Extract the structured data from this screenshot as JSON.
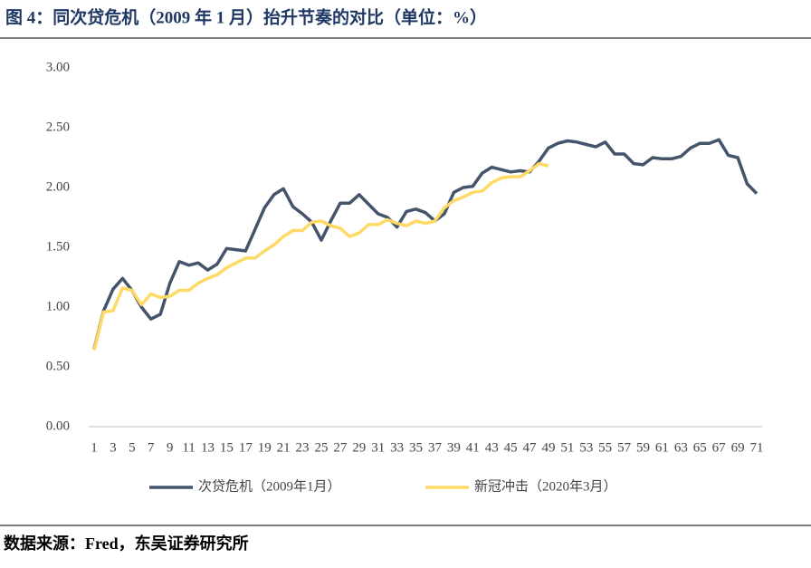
{
  "chart_data": {
    "type": "line",
    "title": "图 4：同次贷危机（2009 年 1 月）抬升节奏的对比（单位：%）",
    "categories": [
      "1",
      null,
      "3",
      null,
      "5",
      null,
      "7",
      null,
      "9",
      null,
      "11",
      null,
      "13",
      null,
      "15",
      null,
      "17",
      null,
      "19",
      null,
      "21",
      null,
      "23",
      null,
      "25",
      null,
      "27",
      null,
      "29",
      null,
      "31",
      null,
      "33",
      null,
      "35",
      null,
      "37",
      null,
      "39",
      null,
      "41",
      null,
      "43",
      null,
      "45",
      null,
      "47",
      null,
      "49",
      null,
      "51",
      null,
      "53",
      null,
      "55",
      null,
      "57",
      null,
      "59",
      null,
      "61",
      null,
      "63",
      null,
      "65",
      null,
      "67",
      null,
      "69",
      null,
      "71"
    ],
    "series": [
      {
        "name": "次贷危机（2009年1月）",
        "color": "#44546a",
        "values": [
          0.65,
          0.97,
          1.15,
          1.24,
          1.14,
          1.0,
          0.9,
          0.94,
          1.2,
          1.38,
          1.35,
          1.37,
          1.31,
          1.36,
          1.49,
          1.48,
          1.47,
          1.65,
          1.83,
          1.94,
          1.99,
          1.84,
          1.78,
          1.71,
          1.56,
          1.72,
          1.87,
          1.87,
          1.94,
          1.86,
          1.78,
          1.75,
          1.67,
          1.8,
          1.82,
          1.79,
          1.72,
          1.78,
          1.96,
          2.0,
          2.01,
          2.12,
          2.17,
          2.15,
          2.13,
          2.14,
          2.13,
          2.22,
          2.33,
          2.37,
          2.39,
          2.38,
          2.36,
          2.34,
          2.38,
          2.28,
          2.28,
          2.2,
          2.19,
          2.25,
          2.24,
          2.24,
          2.26,
          2.33,
          2.37,
          2.37,
          2.4,
          2.27,
          2.25,
          2.03,
          1.95
        ]
      },
      {
        "name": "新冠冲击（2020年3月）",
        "color": "#ffd966",
        "values": [
          0.64,
          0.96,
          0.97,
          1.16,
          1.14,
          1.02,
          1.11,
          1.08,
          1.09,
          1.14,
          1.14,
          1.2,
          1.24,
          1.27,
          1.33,
          1.37,
          1.41,
          1.41,
          1.47,
          1.52,
          1.59,
          1.64,
          1.64,
          1.71,
          1.72,
          1.68,
          1.66,
          1.59,
          1.62,
          1.69,
          1.69,
          1.73,
          1.7,
          1.68,
          1.72,
          1.7,
          1.72,
          1.83,
          1.89,
          1.92,
          1.96,
          1.97,
          2.04,
          2.08,
          2.09,
          2.09,
          2.14,
          2.2,
          2.18,
          null,
          null,
          null,
          null,
          null,
          null,
          null,
          null,
          null,
          null,
          null,
          null,
          null,
          null,
          null,
          null,
          null,
          null,
          null,
          null,
          null,
          null
        ]
      }
    ],
    "ylim": [
      0,
      3
    ],
    "yticks": [
      {
        "value": 0,
        "label": "0.00"
      },
      {
        "value": 0.5,
        "label": "0.50"
      },
      {
        "value": 1,
        "label": "1.00"
      },
      {
        "value": 1.5,
        "label": "1.50"
      },
      {
        "value": 2,
        "label": "2.00"
      },
      {
        "value": 2.5,
        "label": "2.50"
      },
      {
        "value": 3,
        "label": "3.00"
      }
    ],
    "grid": false,
    "legend": "bottom"
  },
  "source": "数据来源：Fred，东吴证券研究所"
}
